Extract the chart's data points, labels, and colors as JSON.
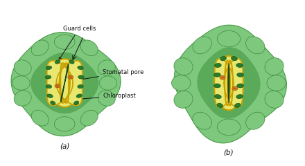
{
  "bg_color": "#ffffff",
  "epidermal_light": "#7dc87d",
  "epidermal_mid": "#5aaa5a",
  "epidermal_dark": "#3a8a3a",
  "guard_yellow": "#e8e870",
  "guard_outline": "#c8a000",
  "chloroplast_fill": "#2a7a2a",
  "chloroplast_edge": "#1a5a1a",
  "pore_dark": "#1a4a1a",
  "nucleus_orange": "#e09020",
  "nucleus_dark": "#b06010",
  "label_color": "#111111",
  "arrow_color": "#111111",
  "labels": {
    "guard_cells": "Guard cells",
    "stomatal_pore": "Stomatal pore",
    "chloroplast": "Chloroplast",
    "a": "(a)",
    "b": "(b)"
  }
}
